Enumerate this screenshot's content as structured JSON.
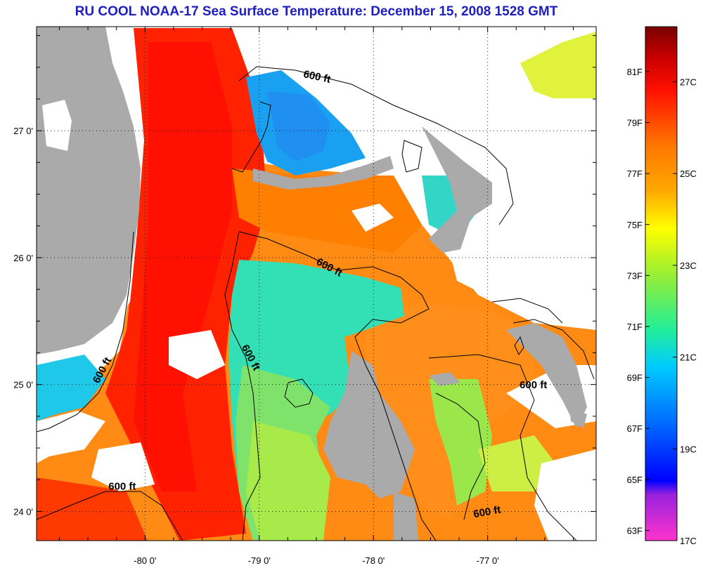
{
  "title": "RU COOL  NOAA-17  Sea Surface Temperature:  December 15, 2008 1528 GMT",
  "map": {
    "lon_range": [
      -80.95,
      -76.05
    ],
    "lat_range": [
      23.77,
      27.82
    ],
    "lon_ticks": [
      {
        "value": -80,
        "label": "-80 0'"
      },
      {
        "value": -79,
        "label": "-79 0'"
      },
      {
        "value": -78,
        "label": "-78 0'"
      },
      {
        "value": -77,
        "label": "-77 0'"
      }
    ],
    "lat_ticks": [
      {
        "value": 24,
        "label": "24 0'"
      },
      {
        "value": 25,
        "label": "25 0'"
      },
      {
        "value": 26,
        "label": "26 0'"
      },
      {
        "value": 27,
        "label": "27 0'"
      }
    ],
    "grid": "dotted",
    "colors": {
      "land": "#aaaaaa",
      "cloud": "#ffffff",
      "outline": "#000000"
    },
    "contour_labels": [
      {
        "text": "600 ft",
        "lon": -78.5,
        "lat": 27.4,
        "angle": 12
      },
      {
        "text": "600 ft",
        "lon": -78.4,
        "lat": 25.9,
        "angle": 28
      },
      {
        "text": "600 ft",
        "lon": -79.1,
        "lat": 25.2,
        "angle": 62
      },
      {
        "text": "600 ft",
        "lon": -80.35,
        "lat": 25.1,
        "angle": -62
      },
      {
        "text": "600 ft",
        "lon": -80.2,
        "lat": 24.17,
        "angle": 0
      },
      {
        "text": "600 ft",
        "lon": -77.0,
        "lat": 23.97,
        "angle": -10
      },
      {
        "text": "600 ft",
        "lon": -76.6,
        "lat": 24.97,
        "angle": 0
      }
    ]
  },
  "colorbar": {
    "range_c": [
      17,
      28.2
    ],
    "f_labels": [
      "81F",
      "79F",
      "77F",
      "75F",
      "73F",
      "71F",
      "69F",
      "67F",
      "65F",
      "63F"
    ],
    "c_labels": [
      "27C",
      "25C",
      "23C",
      "21C",
      "19C",
      "17C"
    ],
    "stops": [
      {
        "c": 17.0,
        "color": "#ff33cc"
      },
      {
        "c": 18.0,
        "color": "#9922dd"
      },
      {
        "c": 18.3,
        "color": "#0000ff"
      },
      {
        "c": 19.5,
        "color": "#0066ff"
      },
      {
        "c": 20.8,
        "color": "#00ccff"
      },
      {
        "c": 21.6,
        "color": "#22ee99"
      },
      {
        "c": 22.8,
        "color": "#99ee33"
      },
      {
        "c": 23.8,
        "color": "#ffff00"
      },
      {
        "c": 24.6,
        "color": "#ffaa00"
      },
      {
        "c": 25.6,
        "color": "#ff7700"
      },
      {
        "c": 26.8,
        "color": "#ff1100"
      },
      {
        "c": 27.5,
        "color": "#cc0000"
      },
      {
        "c": 28.2,
        "color": "#7a0000"
      }
    ]
  }
}
